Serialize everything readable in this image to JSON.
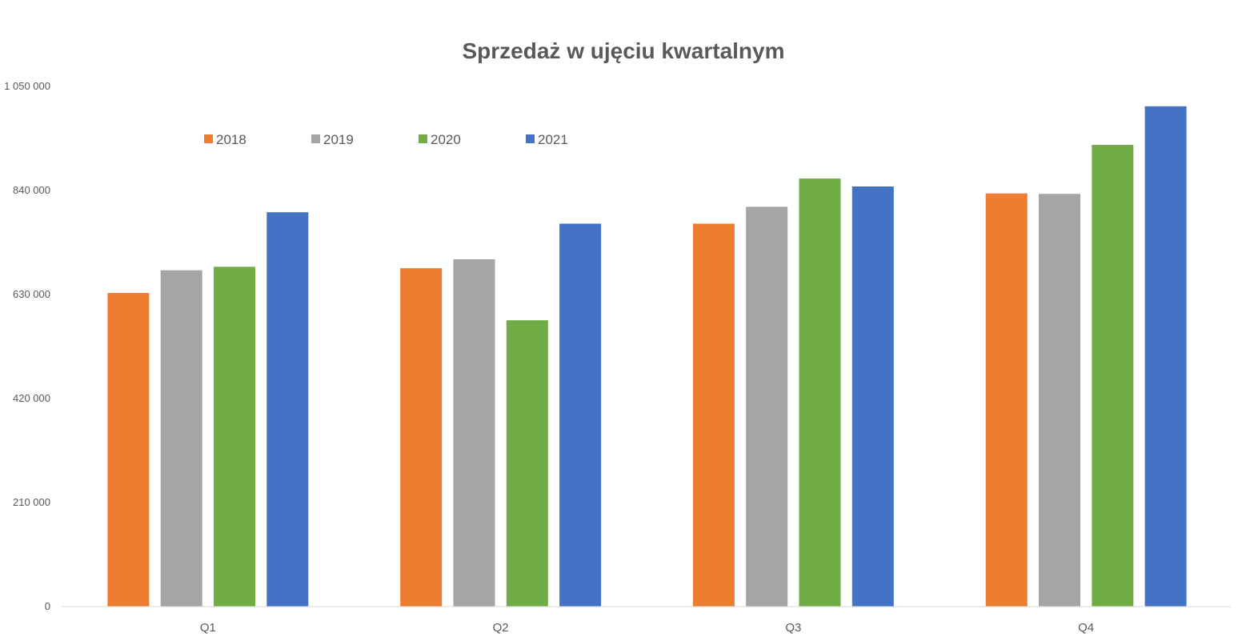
{
  "chart_data": {
    "type": "bar",
    "title": "Sprzedaż w ujęciu kwartalnym",
    "categories": [
      "Q1",
      "Q2",
      "Q3",
      "Q4"
    ],
    "series": [
      {
        "name": "2018",
        "color": "#ED7D31",
        "values": [
          633000,
          683000,
          773000,
          834000
        ]
      },
      {
        "name": "2019",
        "color": "#A5A5A5",
        "values": [
          679000,
          701000,
          807000,
          833000
        ]
      },
      {
        "name": "2020",
        "color": "#70AD47",
        "values": [
          686000,
          578000,
          864000,
          932000
        ]
      },
      {
        "name": "2021",
        "color": "#4472C4",
        "values": [
          796000,
          773000,
          848000,
          1010000
        ]
      }
    ],
    "ylim": [
      0,
      1050000
    ],
    "yticks": [
      0,
      210000,
      420000,
      630000,
      840000,
      1050000
    ],
    "ytick_labels": [
      "0",
      "210 000",
      "420 000",
      "630 000",
      "840 000",
      "1 050 000"
    ],
    "grid": false,
    "legend_position": "top-left"
  }
}
